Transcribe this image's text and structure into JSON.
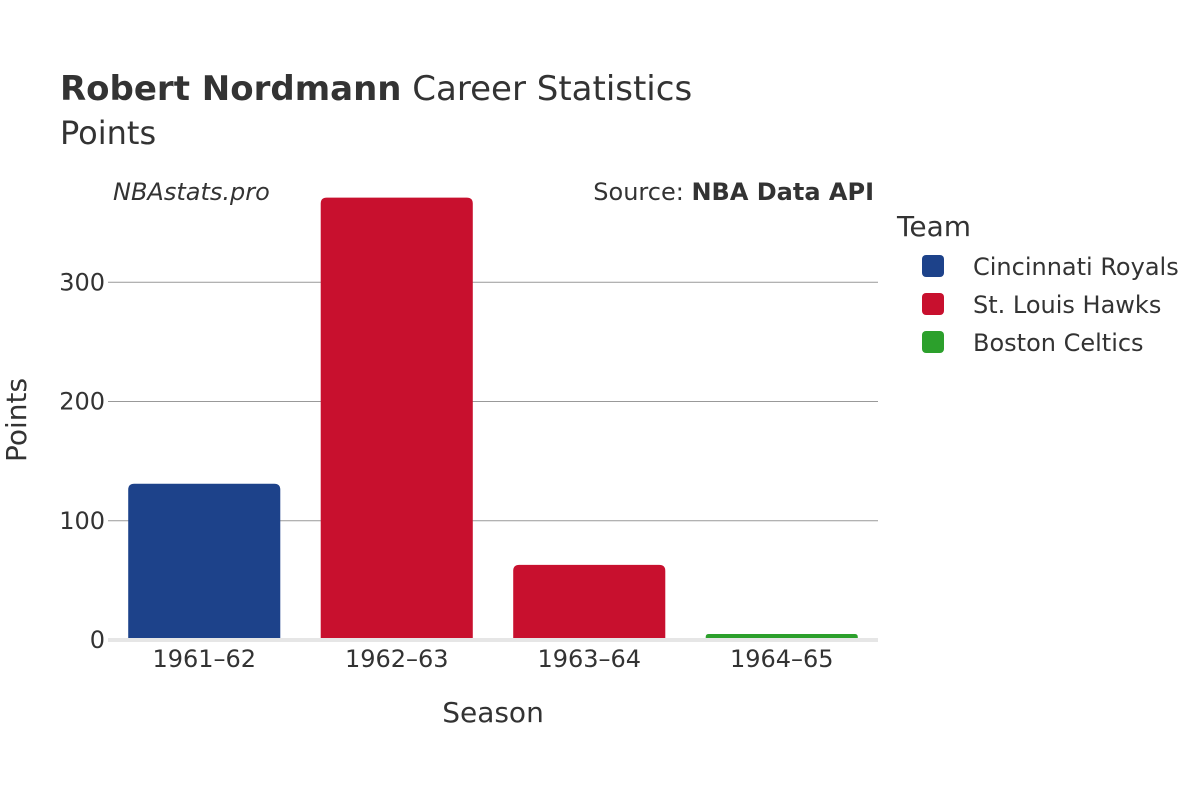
{
  "title": {
    "player": "Robert Nordmann",
    "rest": " Career Statistics",
    "subtitle": "Points"
  },
  "watermark": "NBAstats.pro",
  "source": {
    "prefix": "Source: ",
    "name": "NBA Data API"
  },
  "legend": {
    "title": "Team",
    "placement": "right",
    "items": [
      {
        "label": "Cincinnati Royals",
        "color": "#1d428a"
      },
      {
        "label": "St. Louis Hawks",
        "color": "#c8102e"
      },
      {
        "label": "Boston Celtics",
        "color": "#2ca02c"
      }
    ]
  },
  "chart_data": {
    "type": "bar",
    "xlabel": "Season",
    "ylabel": "Points",
    "categories": [
      "1961–62",
      "1962–63",
      "1963–64",
      "1964–65"
    ],
    "values": [
      131,
      371,
      63,
      5
    ],
    "teams": [
      "Cincinnati Royals",
      "St. Louis Hawks",
      "St. Louis Hawks",
      "Boston Celtics"
    ],
    "colors": [
      "#1d428a",
      "#c8102e",
      "#c8102e",
      "#2ca02c"
    ],
    "ylim": [
      0,
      390
    ],
    "yticks": [
      0,
      100,
      200,
      300
    ],
    "grid": true
  }
}
